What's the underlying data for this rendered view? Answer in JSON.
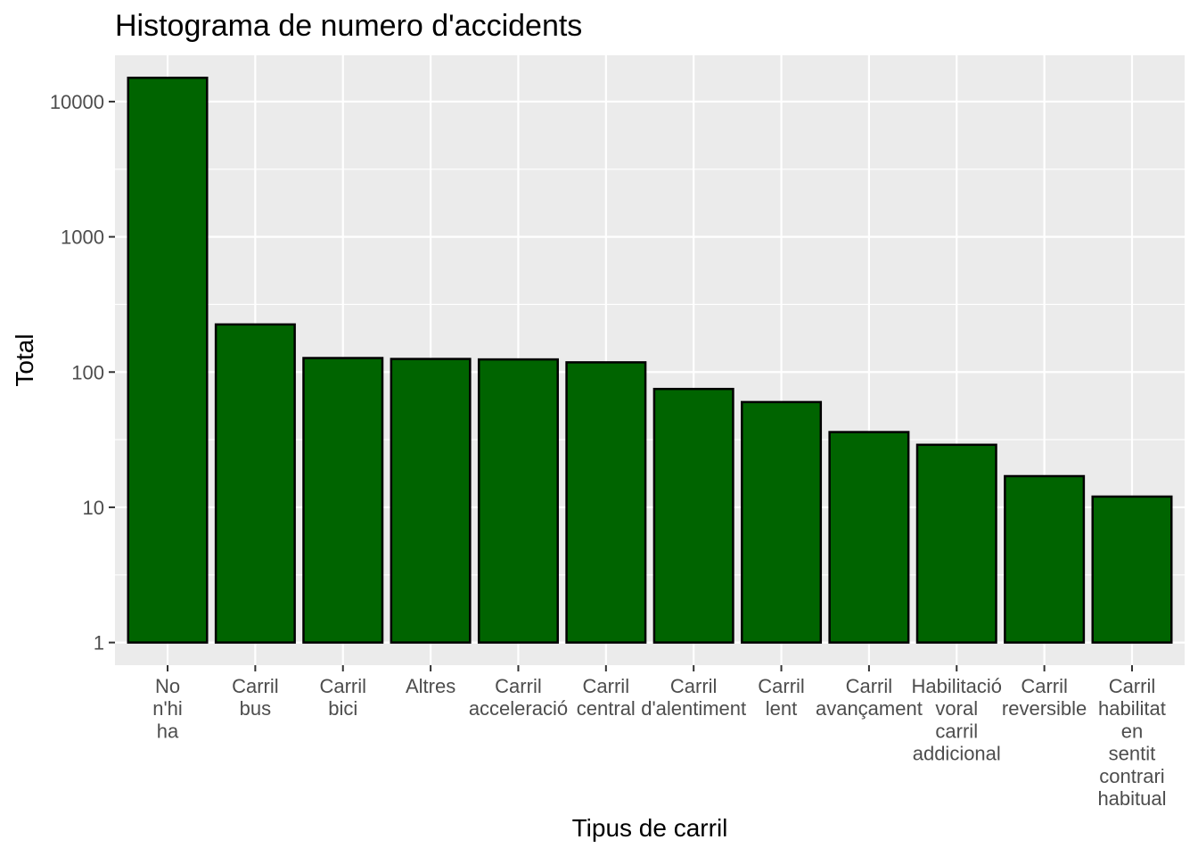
{
  "chart_data": {
    "type": "bar",
    "title": "Histograma de numero d'accidents",
    "xlabel": "Tipus de carril",
    "ylabel": "Total",
    "yscale": "log10",
    "ylim": [
      0.68,
      22000
    ],
    "yticks": [
      1,
      10,
      100,
      1000,
      10000
    ],
    "ytick_labels": [
      "1",
      "10",
      "100",
      "1000",
      "10000"
    ],
    "grid": true,
    "colors": {
      "bar_fill": "#006400",
      "bar_edge": "#000000",
      "panel": "#ebebeb",
      "grid": "#ffffff",
      "tick": "#333333"
    },
    "categories": [
      [
        "No",
        "n'hi",
        "ha"
      ],
      [
        "Carril",
        "bus"
      ],
      [
        "Carril",
        "bici"
      ],
      [
        "Altres"
      ],
      [
        "Carril",
        "acceleració"
      ],
      [
        "Carril",
        "central"
      ],
      [
        "Carril",
        "d'alentiment"
      ],
      [
        "Carril",
        "lent"
      ],
      [
        "Carril",
        "avançament"
      ],
      [
        "Habilitació",
        "voral",
        "carril",
        "addicional"
      ],
      [
        "Carril",
        "reversible"
      ],
      [
        "Carril",
        "habilitat",
        "en",
        "sentit",
        "contrari",
        "habitual"
      ]
    ],
    "values": [
      15000,
      225,
      127,
      125,
      124,
      118,
      75,
      60,
      36,
      29,
      17,
      12
    ]
  }
}
